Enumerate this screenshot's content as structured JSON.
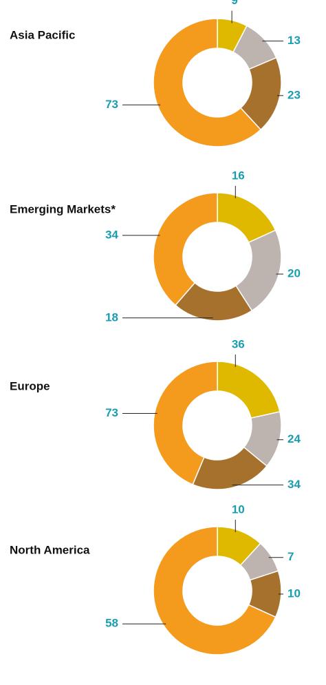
{
  "chart_data": [
    {
      "type": "donut",
      "title": "Asia Pacific",
      "values": [
        9,
        13,
        23,
        73
      ],
      "colors": [
        "#dfb800",
        "#bdb4b0",
        "#a6712d",
        "#f49b1e"
      ],
      "label_color": "#1a9cb2"
    },
    {
      "type": "donut",
      "title": "Emerging Markets*",
      "values": [
        16,
        20,
        18,
        34
      ],
      "colors": [
        "#dfb800",
        "#bdb4b0",
        "#a6712d",
        "#f49b1e"
      ],
      "label_color": "#1a9cb2"
    },
    {
      "type": "donut",
      "title": "Europe",
      "values": [
        36,
        24,
        34,
        73
      ],
      "colors": [
        "#dfb800",
        "#bdb4b0",
        "#a6712d",
        "#f49b1e"
      ],
      "label_color": "#1a9cb2"
    },
    {
      "type": "donut",
      "title": "North America",
      "values": [
        10,
        7,
        10,
        58
      ],
      "colors": [
        "#dfb800",
        "#bdb4b0",
        "#a6712d",
        "#f49b1e"
      ],
      "label_color": "#1a9cb2"
    }
  ]
}
